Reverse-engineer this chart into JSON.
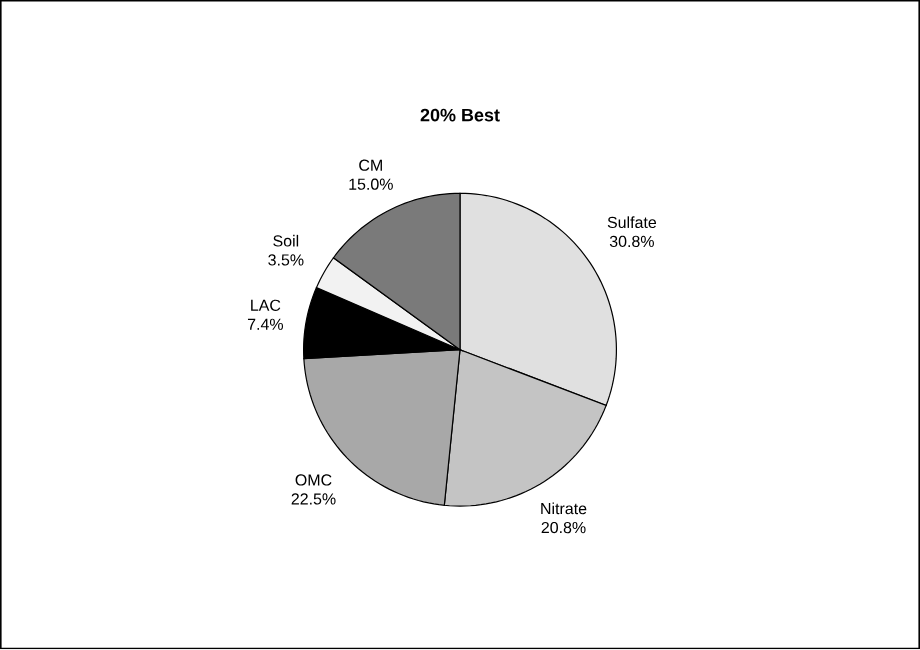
{
  "chart_data": {
    "type": "pie",
    "title": "20% Best",
    "categories": [
      "Sulfate",
      "Nitrate",
      "OMC",
      "LAC",
      "Soil",
      "CM"
    ],
    "values": [
      30.8,
      20.8,
      22.5,
      7.4,
      3.5,
      15.0
    ],
    "value_labels": [
      "30.8%",
      "20.8%",
      "22.5%",
      "7.4%",
      "3.5%",
      "15.0%"
    ],
    "colors": [
      "#e0e0e0",
      "#c4c4c4",
      "#a8a8a8",
      "#000000",
      "#f2f2f2",
      "#7a7a7a"
    ]
  }
}
